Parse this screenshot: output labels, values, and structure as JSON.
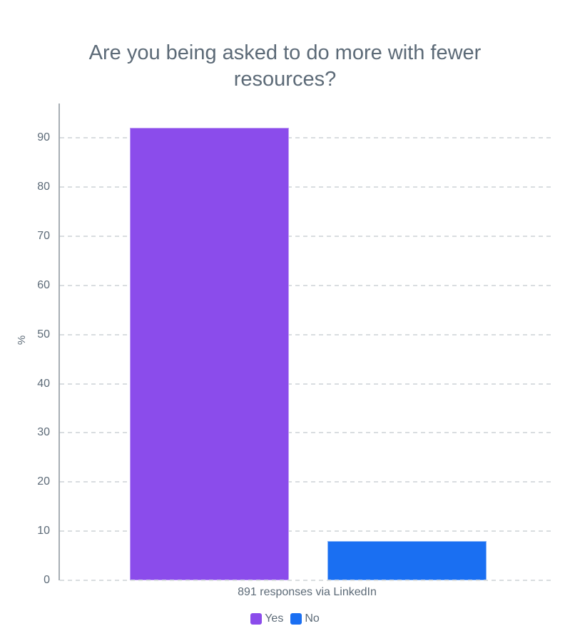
{
  "page": {
    "background": "#FFFFFF",
    "text_color": "#5C6A77"
  },
  "chart_data": {
    "type": "bar",
    "title": "Are you being asked to do more with fewer resources?",
    "categories": [
      "Yes",
      "No"
    ],
    "values": [
      92,
      8
    ],
    "colors": [
      "#8B4CEB",
      "#1A6FF2"
    ],
    "xlabel": "891 responses via LinkedIn",
    "ylabel": "%",
    "ylim": [
      0,
      97
    ],
    "yticks": [
      0,
      10,
      20,
      30,
      40,
      50,
      60,
      70,
      80,
      90
    ],
    "grid": "horizontal-dashed",
    "gridline_color": "#D9DDE0",
    "axis_color": "#A7AEB4",
    "legend_position": "bottom",
    "legend": [
      {
        "label": "Yes",
        "color": "#8B4CEB"
      },
      {
        "label": "No",
        "color": "#1A6FF2"
      }
    ]
  }
}
